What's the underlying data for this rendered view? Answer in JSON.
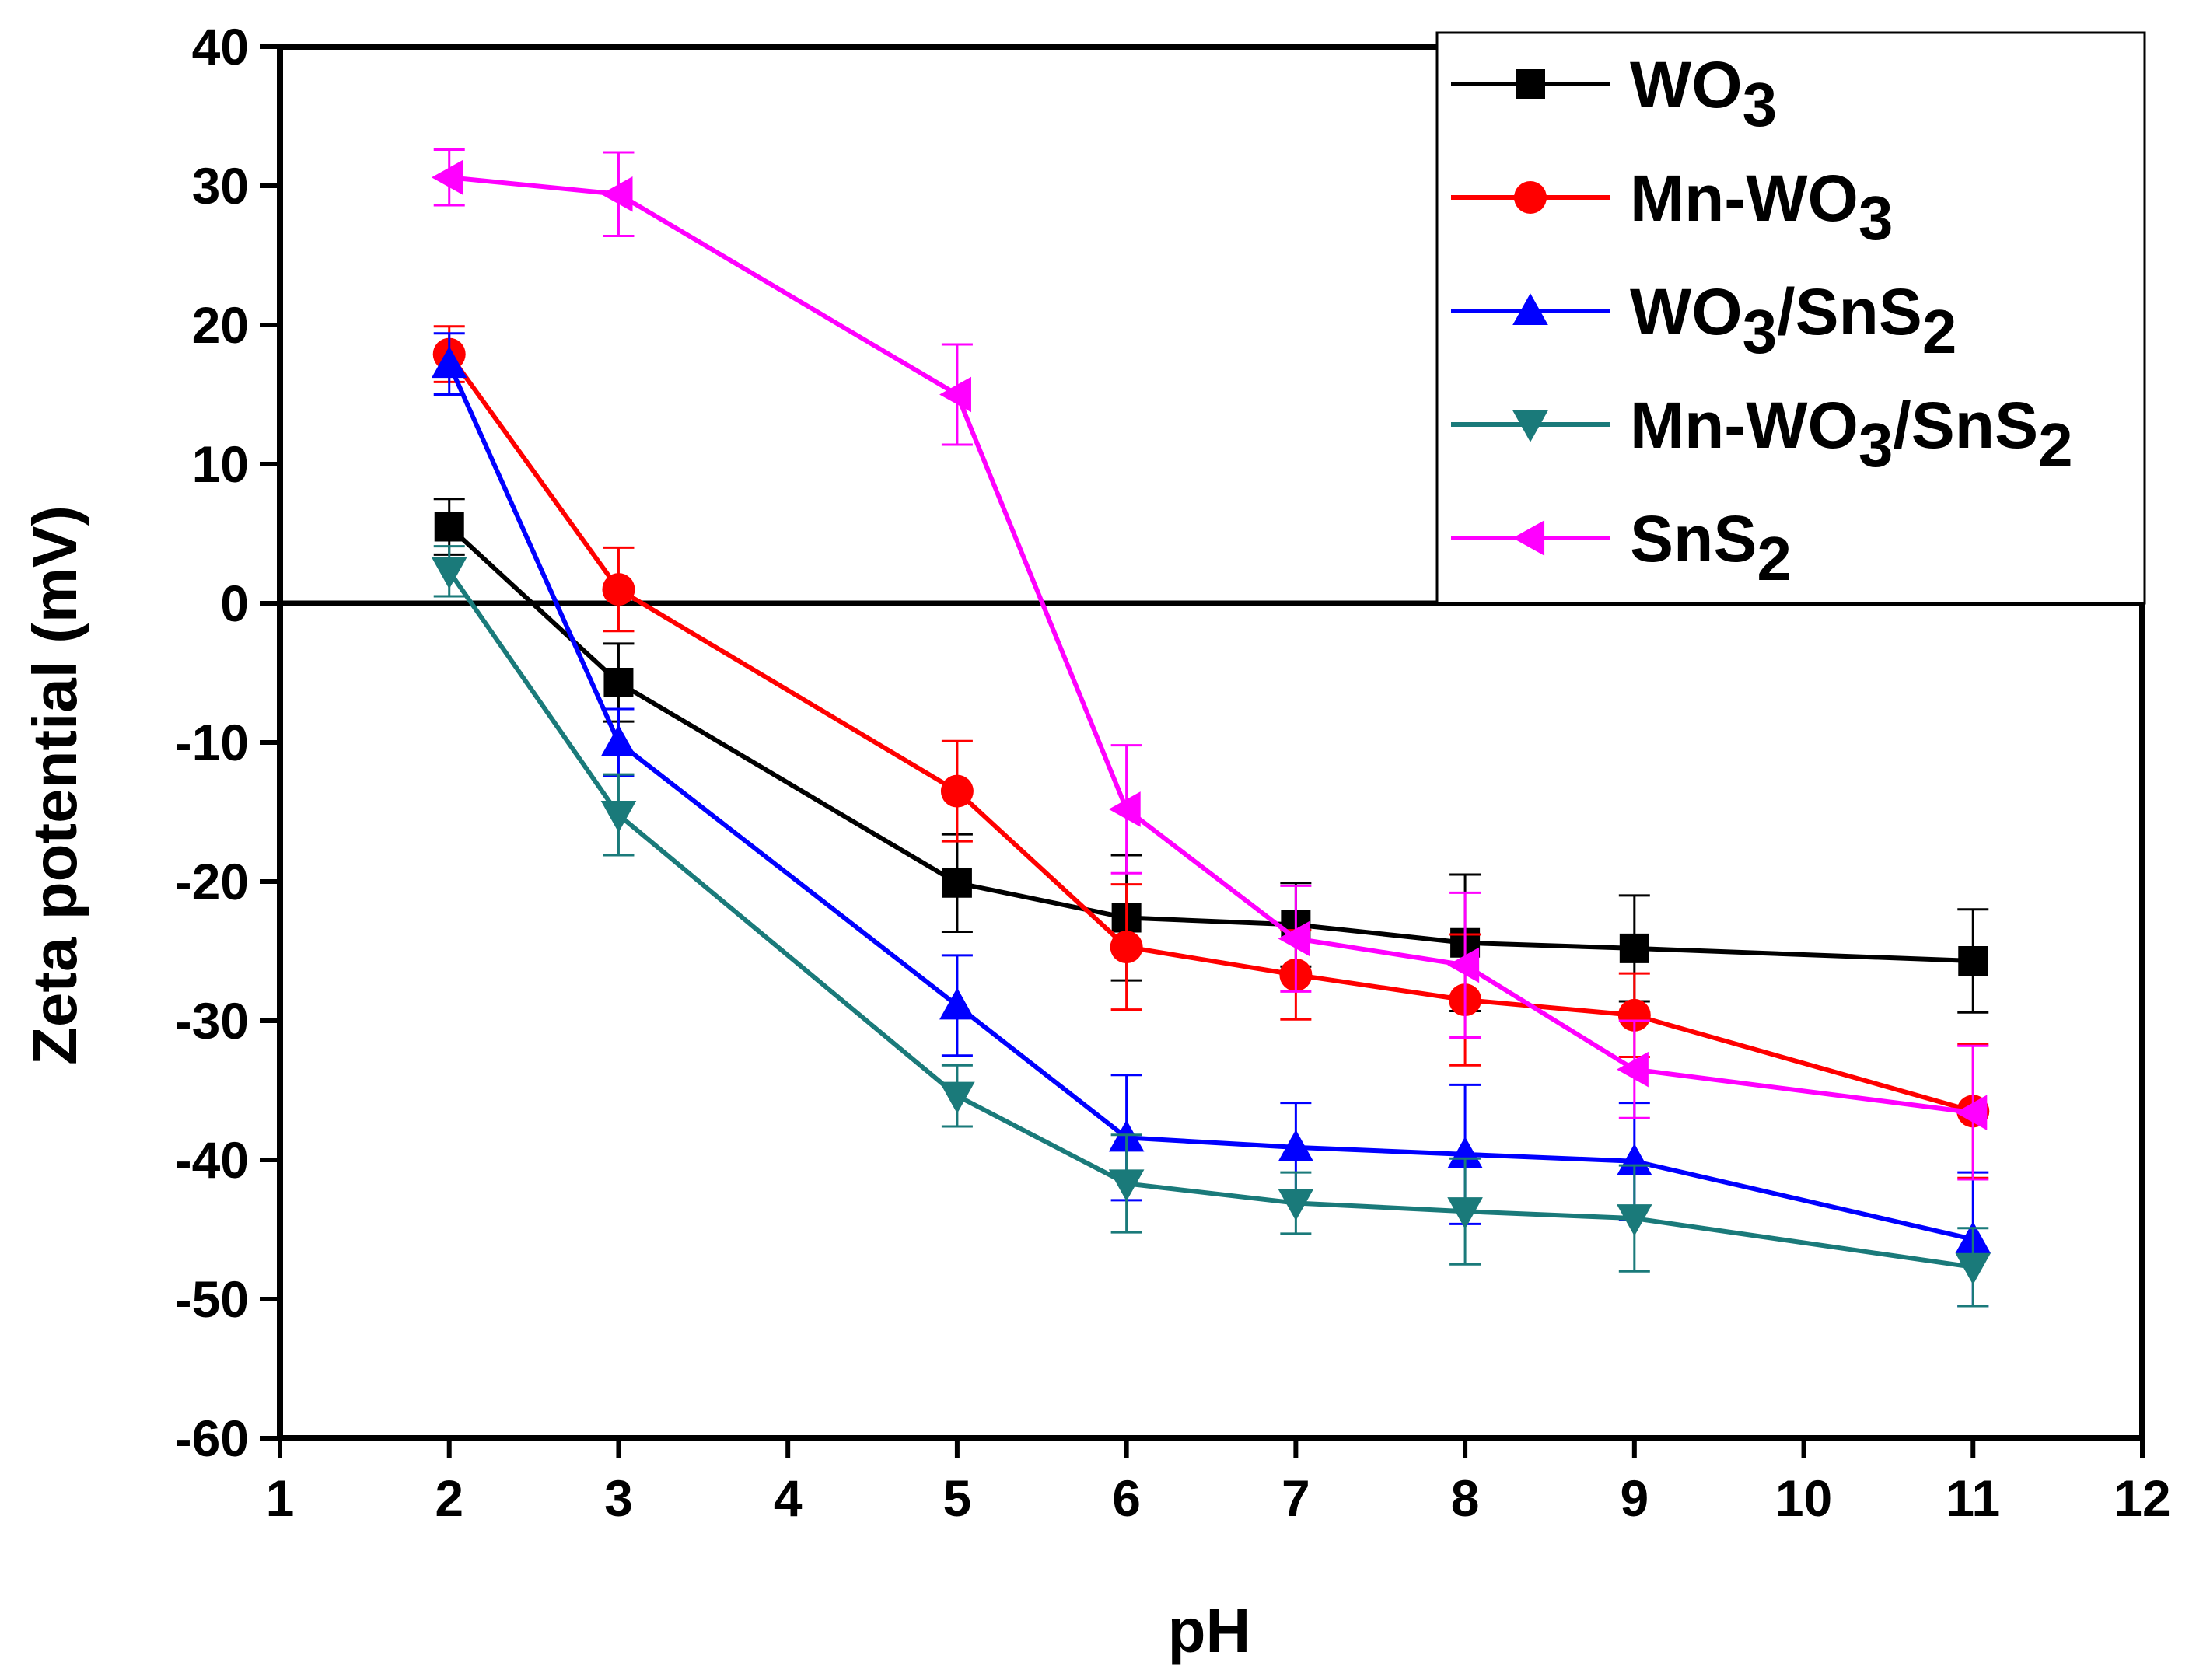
{
  "chart_data": {
    "type": "line",
    "title": "",
    "xlabel": "pH",
    "ylabel": "Zeta potential (mV)",
    "xlim": [
      1,
      12
    ],
    "ylim": [
      -60,
      40
    ],
    "xticks": [
      1,
      2,
      3,
      4,
      5,
      6,
      7,
      8,
      9,
      10,
      11,
      12
    ],
    "yticks": [
      -60,
      -50,
      -40,
      -30,
      -20,
      -10,
      0,
      10,
      20,
      30,
      40
    ],
    "zero_line": 0,
    "legend_position": "top-right",
    "series": [
      {
        "name": "WO3",
        "label_main": "WO",
        "label_sub": "3",
        "label_tail": "",
        "label_sub2": "",
        "color": "#000000",
        "marker": "square",
        "x": [
          2,
          3,
          5,
          6,
          7,
          8,
          9,
          11
        ],
        "y": [
          5.5,
          -5.7,
          -20.1,
          -22.6,
          -23.1,
          -24.4,
          -24.8,
          -25.7
        ],
        "err": [
          2.0,
          2.8,
          3.5,
          4.5,
          3.0,
          4.9,
          3.8,
          3.7
        ]
      },
      {
        "name": "Mn-WO3",
        "label_main": "Mn-WO",
        "label_sub": "3",
        "label_tail": "",
        "label_sub2": "",
        "color": "#ff0000",
        "marker": "circle",
        "x": [
          2,
          3,
          5,
          6,
          7,
          8,
          9,
          11
        ],
        "y": [
          17.9,
          1.0,
          -13.5,
          -24.7,
          -26.7,
          -28.5,
          -29.6,
          -36.5
        ],
        "err": [
          2.0,
          3.0,
          3.6,
          4.5,
          3.2,
          4.7,
          3.0,
          4.8
        ]
      },
      {
        "name": "WO3/SnS2",
        "label_main": "WO",
        "label_sub": "3",
        "label_tail": "/SnS",
        "label_sub2": "2",
        "color": "#0000ff",
        "marker": "triangle-up",
        "x": [
          2,
          3,
          5,
          6,
          7,
          8,
          9,
          11
        ],
        "y": [
          17.2,
          -10.0,
          -28.9,
          -38.4,
          -39.1,
          -39.6,
          -40.1,
          -45.7
        ],
        "err": [
          2.2,
          2.4,
          3.6,
          4.5,
          3.2,
          5.0,
          4.2,
          4.8
        ]
      },
      {
        "name": "Mn-WO3/SnS2",
        "label_main": "Mn-WO",
        "label_sub": "3",
        "label_tail": "/SnS",
        "label_sub2": "2",
        "color": "#1a7a7a",
        "marker": "triangle-down",
        "x": [
          2,
          3,
          5,
          6,
          7,
          8,
          9,
          11
        ],
        "y": [
          2.3,
          -15.2,
          -35.4,
          -41.7,
          -43.1,
          -43.7,
          -44.2,
          -47.7
        ],
        "err": [
          1.8,
          2.9,
          2.2,
          3.5,
          2.2,
          3.8,
          3.8,
          2.8
        ]
      },
      {
        "name": "SnS2",
        "label_main": "SnS",
        "label_sub": "2",
        "label_tail": "",
        "label_sub2": "",
        "color": "#ff00ff",
        "marker": "triangle-left",
        "x": [
          2,
          3,
          5,
          6,
          7,
          8,
          9,
          11
        ],
        "y": [
          30.6,
          29.4,
          15.0,
          -14.8,
          -24.1,
          -26.0,
          -33.5,
          -36.6
        ],
        "err": [
          2.0,
          3.0,
          3.6,
          4.6,
          3.8,
          5.2,
          3.5,
          4.8
        ]
      }
    ]
  }
}
